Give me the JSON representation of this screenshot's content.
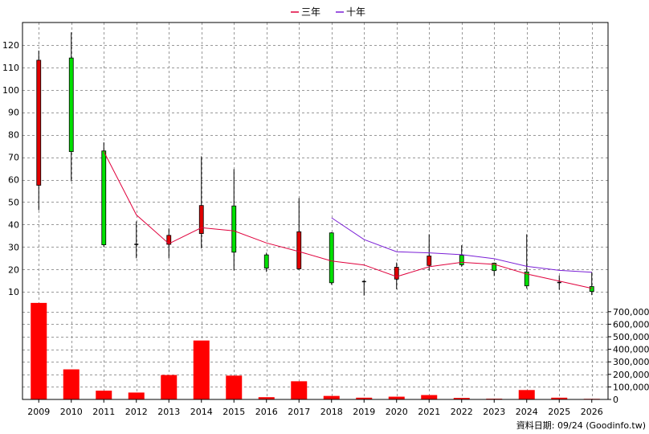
{
  "chart_data": {
    "type": "candlestick",
    "legend": {
      "placement": "top-center",
      "items": [
        {
          "name": "三年",
          "color": "#e0003c"
        },
        {
          "name": "十年",
          "color": "#7a1fd6"
        }
      ]
    },
    "x": [
      "2009",
      "2010",
      "2011",
      "2012",
      "2013",
      "2014",
      "2015",
      "2016",
      "2017",
      "2018",
      "2019",
      "2020",
      "2021",
      "2022",
      "2023",
      "2024",
      "2025",
      "2026"
    ],
    "price_axis": {
      "ylim": [
        4,
        130
      ],
      "ticks": [
        10,
        20,
        30,
        40,
        50,
        60,
        70,
        80,
        90,
        100,
        110,
        120
      ]
    },
    "volume_axis": {
      "ylim": [
        0,
        750000
      ],
      "ticks": [
        0,
        100000,
        200000,
        300000,
        400000,
        500000,
        600000,
        700000
      ],
      "tick_labels": [
        "0",
        "100,000",
        "200,000",
        "300,000",
        "400,000",
        "500,000",
        "600,000",
        "700,000"
      ]
    },
    "candles": [
      {
        "open": 57.5,
        "close": 113.2,
        "high": 117.5,
        "low": 46.4
      },
      {
        "open": 114.2,
        "close": 72.5,
        "high": 125.6,
        "low": 59.3
      },
      {
        "open": 72.8,
        "close": 31.0,
        "high": 76.6,
        "low": 30.0
      },
      {
        "open": 31.2,
        "close": 31.2,
        "high": 41.4,
        "low": 25.0
      },
      {
        "open": 31.2,
        "close": 35.2,
        "high": 38.3,
        "low": 24.9
      },
      {
        "open": 36.0,
        "close": 48.5,
        "high": 70.4,
        "low": 29.4
      },
      {
        "open": 48.3,
        "close": 27.7,
        "high": 64.7,
        "low": 19.6
      },
      {
        "open": 26.5,
        "close": 20.6,
        "high": 27.5,
        "low": 18.9
      },
      {
        "open": 20.3,
        "close": 36.8,
        "high": 51.8,
        "low": 19.8
      },
      {
        "open": 36.3,
        "close": 14.1,
        "high": 36.6,
        "low": 13.2
      },
      {
        "open": 14.2,
        "close": 14.6,
        "high": 15.3,
        "low": 8.4
      },
      {
        "open": 15.7,
        "close": 21.0,
        "high": 23.1,
        "low": 11.2
      },
      {
        "open": 21.8,
        "close": 26.0,
        "high": 35.7,
        "low": 19.5
      },
      {
        "open": 26.3,
        "close": 22.1,
        "high": 30.8,
        "low": 21.2
      },
      {
        "open": 22.8,
        "close": 19.5,
        "high": 23.1,
        "low": 17.1
      },
      {
        "open": 18.9,
        "close": 12.7,
        "high": 35.7,
        "low": 11.5
      },
      {
        "open": 14.2,
        "close": 14.2,
        "high": 17.3,
        "low": 11.0
      },
      {
        "open": 12.4,
        "close": 10.2,
        "high": 18.9,
        "low": 8.6
      }
    ],
    "series": [
      {
        "name": "三年",
        "color": "#e0003c",
        "values": [
          null,
          null,
          72.5,
          44.3,
          31.5,
          38.6,
          37.2,
          31.8,
          28.0,
          23.8,
          22.0,
          16.8,
          21.2,
          23.2,
          22.3,
          18.0,
          14.8,
          11.6
        ]
      },
      {
        "name": "十年",
        "color": "#7a1fd6",
        "values": [
          null,
          null,
          null,
          null,
          null,
          null,
          null,
          null,
          null,
          43.0,
          33.3,
          27.9,
          27.4,
          26.6,
          24.8,
          21.4,
          19.6,
          18.8
        ]
      }
    ],
    "volume": [
      770000,
      240000,
      70000,
      55000,
      195000,
      470000,
      190000,
      18000,
      145000,
      28000,
      14000,
      22000,
      35000,
      12000,
      6000,
      75000,
      14000,
      5000
    ],
    "up_color": "#00e000",
    "down_color": "#e00000",
    "volume_color": "#ff0000",
    "source_note": "資料日期: 09/24 (Goodinfo.tw)"
  }
}
